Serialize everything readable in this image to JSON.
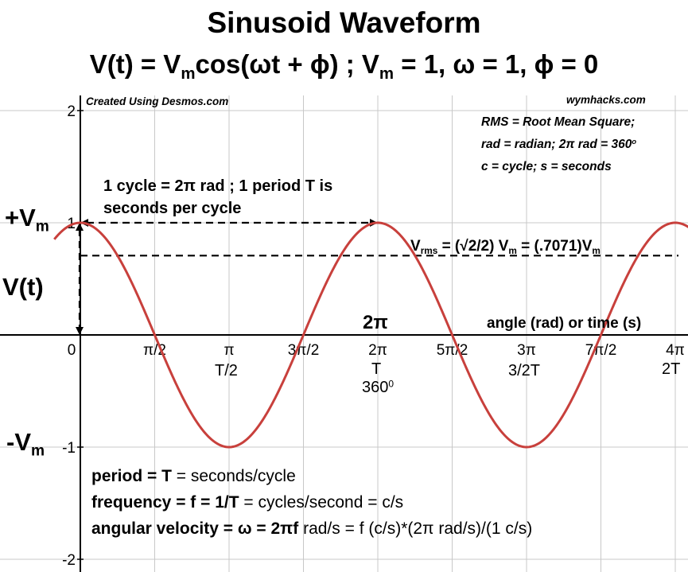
{
  "title": "Sinusoid Waveform",
  "equation": {
    "lhs": "V(t) = V",
    "m1": "m",
    "mid": "cos(ωt + ϕ) ; V",
    "m2": "m",
    "rhs": "= 1, ω = 1, ϕ = 0"
  },
  "credit_left": "Created Using Desmos.com",
  "credit_right": "wymhacks.com",
  "notes": [
    "RMS = Root Mean Square;",
    "rad = radian; 2π rad = 360",
    "o",
    "c = cycle;  s = seconds"
  ],
  "left_labels": {
    "plus_vm": "+V",
    "minus_vm": "-V",
    "sub_m": "m",
    "vt": "V(t)"
  },
  "cycle_note": [
    "1 cycle = 2π rad ; 1 period T is",
    "seconds per cycle"
  ],
  "rms_label": {
    "v": "V",
    "rms": "rms",
    "mid": "= (√2/2) V",
    "m": "m",
    "rhs": "=  (.7071)V",
    "m2": "m"
  },
  "two_pi_label": "2π",
  "axis_title": "angle (rad) or time (s)",
  "extra_ticks": {
    "pi_T": "T/2",
    "two_pi_T": "T",
    "deg": "360",
    "deg_sup": "0",
    "three_pi_T": "3/2T",
    "four_pi_T": "2T"
  },
  "formulas": {
    "period_b": "period = T",
    "period_r": " = seconds/cycle",
    "freq_b": "frequency = f = 1/T",
    "freq_r": " = cycles/second = c/s",
    "ang_b": "angular velocity = ω = 2πf",
    "ang_r": " rad/s = f (c/s)*(2π rad/s)/(1 c/s)"
  },
  "colors": {
    "curve": "#c8403c",
    "grid": "#c8c8c8",
    "axis": "#000000"
  },
  "chart_data": {
    "type": "line",
    "function": "cos(x)",
    "amplitude": 1,
    "omega": 1,
    "phi": 0,
    "rms_value": 0.7071,
    "xlim": [
      -0.55,
      12.97
    ],
    "ylim": [
      -2.05,
      2.1
    ],
    "x_ticks": [
      {
        "value": 0,
        "label": "0"
      },
      {
        "value": 1.5708,
        "label": "π/2"
      },
      {
        "value": 3.1416,
        "label": "π"
      },
      {
        "value": 4.7124,
        "label": "3π/2"
      },
      {
        "value": 6.2832,
        "label": "2π"
      },
      {
        "value": 7.854,
        "label": "5π/2"
      },
      {
        "value": 9.4248,
        "label": "3π"
      },
      {
        "value": 10.9956,
        "label": "7π/2"
      },
      {
        "value": 12.5664,
        "label": "4π"
      }
    ],
    "y_ticks": [
      {
        "value": 2,
        "label": "2"
      },
      {
        "value": 1,
        "label": "1"
      },
      {
        "value": -1,
        "label": "-1"
      },
      {
        "value": -2,
        "label": "-2"
      }
    ],
    "grid": true
  }
}
